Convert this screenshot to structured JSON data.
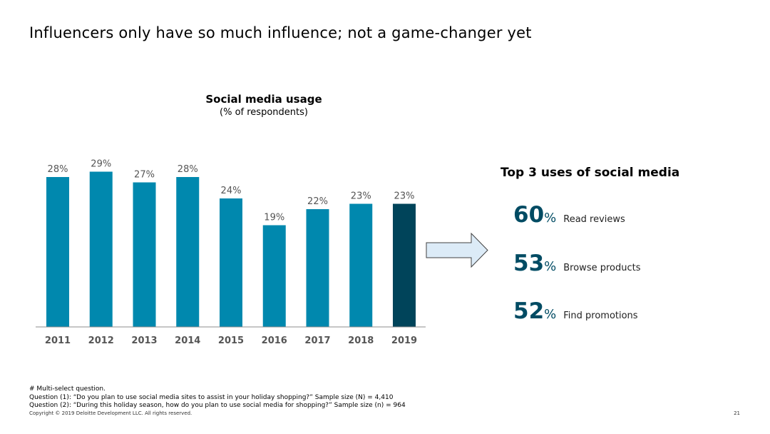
{
  "slide": {
    "title": "Influencers only have so much influence; not a game-changer yet",
    "page_number": "21"
  },
  "chart_data": {
    "type": "bar",
    "title": "Social media usage",
    "subtitle": "(% of respondents)",
    "categories": [
      "2011",
      "2012",
      "2013",
      "2014",
      "2015",
      "2016",
      "2017",
      "2018",
      "2019"
    ],
    "values": [
      28,
      29,
      27,
      28,
      24,
      19,
      22,
      23,
      23
    ],
    "value_labels": [
      "28%",
      "29%",
      "27%",
      "28%",
      "24%",
      "19%",
      "22%",
      "23%",
      "23%"
    ],
    "unit": "%",
    "ylim": [
      0,
      33.5
    ],
    "grid": false,
    "colors": {
      "default": "#0088AE",
      "highlight": "#00445A",
      "axis": "#8c8c8c"
    },
    "highlight_index": 8
  },
  "top_uses": {
    "title": "Top 3 uses of social media",
    "color": "#004B63",
    "items": [
      {
        "value": "60",
        "unit": "%",
        "label": "Read reviews"
      },
      {
        "value": "53",
        "unit": "%",
        "label": "Browse products"
      },
      {
        "value": "52",
        "unit": "%",
        "label": "Find promotions"
      }
    ]
  },
  "footnotes": {
    "lines": [
      "# Multi-select question.",
      "Question (1): “Do you plan to use social media sites to assist in your holiday shopping?” Sample size (N) = 4,410",
      "Question (2): “During this holiday season, how do you plan to use social media for shopping?” Sample size (n) = 964"
    ],
    "copyright": "Copyright © 2019 Deloitte Development LLC. All rights reserved."
  }
}
